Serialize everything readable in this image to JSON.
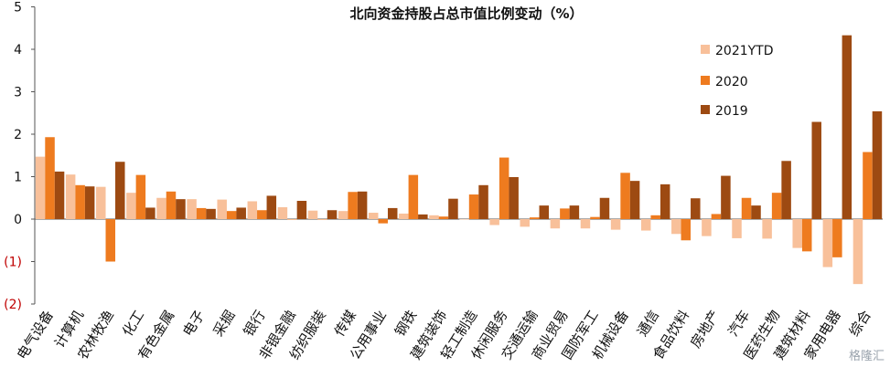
{
  "chart_data": {
    "type": "bar",
    "title": "北向资金持股占总市值比例变动（%）",
    "ylim": [
      -2,
      5
    ],
    "yticks": [
      -2,
      -1,
      0,
      1,
      2,
      3,
      4,
      5
    ],
    "ytick_labels": [
      "(2)",
      "(1)",
      "0",
      "1",
      "2",
      "3",
      "4",
      "5"
    ],
    "categories": [
      "电气设备",
      "计算机",
      "农林牧渔",
      "化工",
      "有色金属",
      "电子",
      "采掘",
      "银行",
      "非银金融",
      "纺织服装",
      "传媒",
      "公用事业",
      "钢铁",
      "建筑装饰",
      "轻工制造",
      "休闲服务",
      "交通运输",
      "商业贸易",
      "国防军工",
      "机械设备",
      "通信",
      "食品饮料",
      "房地产",
      "汽车",
      "医药生物",
      "建筑材料",
      "家用电器",
      "综合"
    ],
    "series": [
      {
        "name": "2021YTD",
        "color": "#f8c09a",
        "values": [
          1.47,
          1.05,
          0.76,
          0.62,
          0.5,
          0.47,
          0.46,
          0.42,
          0.28,
          0.2,
          0.19,
          0.15,
          0.13,
          0.09,
          0.0,
          -0.14,
          -0.18,
          -0.22,
          -0.22,
          -0.25,
          -0.27,
          -0.35,
          -0.4,
          -0.45,
          -0.46,
          -0.68,
          -1.13,
          -1.53
        ]
      },
      {
        "name": "2020",
        "color": "#ee7b1f",
        "values": [
          1.93,
          0.8,
          -1.0,
          1.04,
          0.65,
          0.26,
          0.19,
          0.21,
          0.0,
          0.0,
          0.64,
          -0.1,
          1.04,
          0.06,
          0.58,
          1.45,
          0.04,
          0.25,
          0.05,
          1.09,
          0.09,
          -0.5,
          0.12,
          0.5,
          0.62,
          -0.76,
          -0.9,
          1.58
        ]
      },
      {
        "name": "2019",
        "color": "#9d4a12",
        "values": [
          1.12,
          0.77,
          1.35,
          0.27,
          0.47,
          0.24,
          0.27,
          0.55,
          0.43,
          0.21,
          0.65,
          0.26,
          0.11,
          0.48,
          0.8,
          0.99,
          0.32,
          0.32,
          0.5,
          0.9,
          0.82,
          0.49,
          1.02,
          0.32,
          1.37,
          2.29,
          4.33,
          2.54
        ]
      }
    ]
  },
  "watermark": "格隆汇"
}
